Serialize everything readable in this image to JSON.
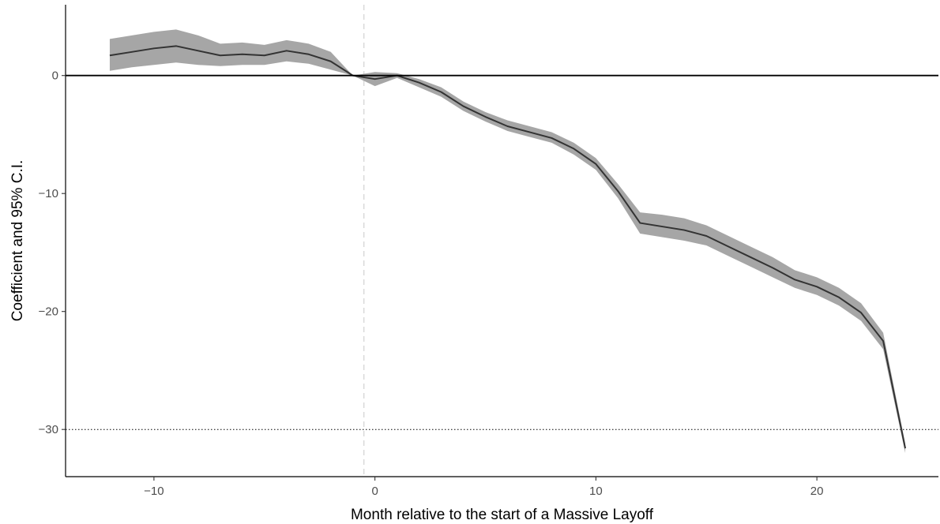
{
  "chart_data": {
    "type": "line",
    "title": "",
    "xlabel": "Month relative to the start of a Massive Layoff",
    "ylabel": "Coefficient and 95% C.I.",
    "xlim": [
      -14.0,
      25.5
    ],
    "ylim": [
      -34.0,
      6.0
    ],
    "x_ticks": [
      -10,
      0,
      10,
      20
    ],
    "x_tick_labels": [
      "−10",
      "0",
      "10",
      "20"
    ],
    "y_ticks": [
      0,
      -10,
      -20,
      -30
    ],
    "y_tick_labels": [
      "0",
      "−10",
      "−20",
      "−30"
    ],
    "grid": false,
    "legend": "none",
    "reference_lines": {
      "horizontal_solid": 0,
      "horizontal_dotted": -30,
      "vertical_dashed": -0.5
    },
    "colors": {
      "line": "#333333",
      "ribbon": "#a6a6a6",
      "reference": "#000000",
      "dashed": "#d9d9d9"
    },
    "series": [
      {
        "x": [
          -12,
          -11,
          -10,
          -9,
          -8,
          -7,
          -6,
          -5,
          -4,
          -3,
          -2,
          -1,
          0,
          1,
          2,
          3,
          4,
          5,
          6,
          7,
          8,
          9,
          10,
          11,
          12,
          13,
          14,
          15,
          16,
          17,
          18,
          19,
          20,
          21,
          22,
          23,
          24
        ],
        "y": [
          1.7,
          2.0,
          2.3,
          2.5,
          2.1,
          1.7,
          1.8,
          1.7,
          2.1,
          1.8,
          1.2,
          0.0,
          -0.3,
          0.0,
          -0.6,
          -1.4,
          -2.6,
          -3.5,
          -4.3,
          -4.8,
          -5.3,
          -6.2,
          -7.5,
          -9.8,
          -12.5,
          -12.8,
          -13.1,
          -13.6,
          -14.5,
          -15.4,
          -16.3,
          -17.3,
          -17.9,
          -18.8,
          -20.1,
          -22.5,
          -31.6
        ],
        "lower": [
          0.4,
          0.7,
          0.9,
          1.1,
          0.9,
          0.8,
          0.9,
          0.9,
          1.2,
          1.0,
          0.5,
          0.0,
          -0.9,
          -0.2,
          -1.0,
          -1.8,
          -3.0,
          -3.9,
          -4.7,
          -5.2,
          -5.7,
          -6.7,
          -8.0,
          -10.4,
          -13.4,
          -13.7,
          -14.0,
          -14.4,
          -15.3,
          -16.2,
          -17.1,
          -18.0,
          -18.6,
          -19.5,
          -20.8,
          -23.2,
          -32.0
        ],
        "upper": [
          3.1,
          3.4,
          3.7,
          3.9,
          3.4,
          2.7,
          2.8,
          2.6,
          3.0,
          2.7,
          2.0,
          0.0,
          0.3,
          0.2,
          -0.3,
          -1.0,
          -2.2,
          -3.1,
          -3.8,
          -4.3,
          -4.8,
          -5.7,
          -7.0,
          -9.2,
          -11.6,
          -11.8,
          -12.1,
          -12.7,
          -13.6,
          -14.5,
          -15.4,
          -16.5,
          -17.1,
          -18.0,
          -19.3,
          -21.8,
          -31.2
        ]
      }
    ]
  }
}
